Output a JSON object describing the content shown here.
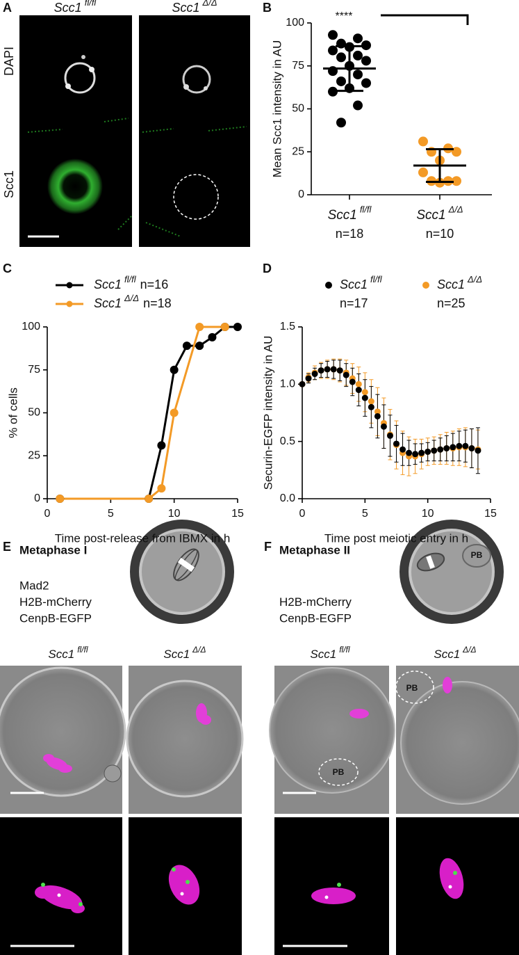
{
  "panel_labels": [
    "A",
    "B",
    "C",
    "D",
    "E",
    "F"
  ],
  "panel_a": {
    "genotypes": [
      {
        "gene": "Scc1",
        "allele": "fl/fl"
      },
      {
        "gene": "Scc1",
        "allele": "Δ/Δ"
      }
    ],
    "channels": [
      {
        "name": "DAPI",
        "color": "#333333"
      },
      {
        "name": "Scc1",
        "color": "#2ca02c"
      }
    ]
  },
  "chart_data": [
    {
      "type": "dotplot",
      "y_label": "Mean Scc1 intensity in AU",
      "ylim": [
        0,
        100
      ],
      "yticks": [
        0,
        25,
        50,
        75,
        100
      ],
      "significance": "****",
      "groups": [
        {
          "gene": "Scc1",
          "allele": "fl/fl",
          "n_label": "n=18",
          "color": "#000000",
          "values": [
            93,
            91,
            88,
            87,
            86,
            84,
            81,
            80,
            78,
            75,
            72,
            70,
            66,
            65,
            62,
            60,
            52,
            42
          ],
          "mean": 73.5,
          "sd": 13
        },
        {
          "gene": "Scc1",
          "allele": "Δ/Δ",
          "n_label": "n=10",
          "color": "#f39a26",
          "values": [
            31,
            27,
            25,
            25,
            20,
            13,
            8,
            8,
            8,
            7
          ],
          "mean": 17,
          "sd": 9.5
        }
      ]
    },
    {
      "type": "line",
      "y_label": "% of cells",
      "x_label": "Time post-release from IBMX in h",
      "xlim": [
        0,
        15
      ],
      "ylim": [
        0,
        100
      ],
      "xticks": [
        0,
        5,
        10,
        15
      ],
      "yticks": [
        0,
        25,
        50,
        75,
        100
      ],
      "series": [
        {
          "gene": "Scc1",
          "allele": "fl/fl",
          "n_label": "n=16",
          "color": "#000000",
          "x": [
            1,
            8,
            9,
            10,
            11,
            12,
            13,
            14,
            15
          ],
          "values": [
            0,
            0,
            31,
            75,
            89,
            89,
            94,
            100,
            100
          ]
        },
        {
          "gene": "Scc1",
          "allele": "Δ/Δ",
          "n_label": "n=18",
          "color": "#f39a26",
          "x": [
            1,
            8,
            9,
            10,
            12,
            14
          ],
          "values": [
            0,
            0,
            6,
            50,
            100,
            100
          ]
        }
      ]
    },
    {
      "type": "errorline",
      "y_label": "Securin-EGFP intensity in AU",
      "x_label": "Time post meiotic entry in h",
      "xlim": [
        0,
        15
      ],
      "ylim": [
        0,
        1.5
      ],
      "xticks": [
        0,
        5,
        10,
        15
      ],
      "yticks": [
        {
          "value": 0,
          "label": "0.0"
        },
        0.5,
        {
          "value": 1,
          "label": "1.0"
        },
        1.5
      ],
      "series": [
        {
          "gene": "Scc1",
          "allele": "fl/fl",
          "n_label": "n=17",
          "color": "#000000",
          "x": [
            0,
            0.5,
            1,
            1.5,
            2,
            2.5,
            3,
            3.5,
            4,
            4.5,
            5,
            5.5,
            6,
            6.5,
            7,
            7.5,
            8,
            8.5,
            9,
            9.5,
            10,
            10.5,
            11,
            11.5,
            12,
            12.5,
            13,
            13.5,
            14
          ],
          "values": [
            1.0,
            1.05,
            1.09,
            1.12,
            1.13,
            1.13,
            1.12,
            1.08,
            1.02,
            0.95,
            0.88,
            0.8,
            0.72,
            0.63,
            0.55,
            0.48,
            0.43,
            0.4,
            0.39,
            0.4,
            0.41,
            0.42,
            0.43,
            0.44,
            0.45,
            0.46,
            0.46,
            0.44,
            0.42
          ],
          "errors": [
            0,
            0.04,
            0.05,
            0.06,
            0.07,
            0.08,
            0.09,
            0.1,
            0.12,
            0.14,
            0.16,
            0.18,
            0.19,
            0.19,
            0.18,
            0.16,
            0.14,
            0.11,
            0.09,
            0.08,
            0.08,
            0.09,
            0.1,
            0.11,
            0.12,
            0.13,
            0.14,
            0.17,
            0.2
          ]
        },
        {
          "gene": "Scc1",
          "allele": "Δ/Δ",
          "n_label": "n=25",
          "color": "#f39a26",
          "x": [
            0,
            0.5,
            1,
            1.5,
            2,
            2.5,
            3,
            3.5,
            4,
            4.5,
            5,
            5.5,
            6,
            6.5,
            7,
            7.5,
            8,
            8.5,
            9,
            9.5,
            10,
            10.5,
            11,
            11.5,
            12,
            12.5,
            13,
            13.5,
            14
          ],
          "values": [
            1.0,
            1.06,
            1.1,
            1.12,
            1.13,
            1.13,
            1.12,
            1.1,
            1.05,
            1.0,
            0.93,
            0.85,
            0.76,
            0.66,
            0.56,
            0.47,
            0.4,
            0.37,
            0.37,
            0.39,
            0.41,
            0.42,
            0.43,
            0.44,
            0.44,
            0.45,
            0.45,
            0.44,
            0.43
          ],
          "errors": [
            0,
            0.04,
            0.06,
            0.07,
            0.08,
            0.09,
            0.1,
            0.11,
            0.13,
            0.15,
            0.17,
            0.19,
            0.21,
            0.22,
            0.22,
            0.21,
            0.19,
            0.17,
            0.15,
            0.13,
            0.12,
            0.12,
            0.13,
            0.14,
            0.15,
            0.16,
            0.17,
            0.17,
            0.17
          ]
        }
      ]
    }
  ],
  "panel_e": {
    "title": "Metaphase I",
    "stains": [
      {
        "name": "Mad2",
        "color": "#222222"
      },
      {
        "name": "H2B-mCherry",
        "color": "#d21fb4"
      },
      {
        "name": "CenpB-EGFP",
        "color": "#3aa635"
      }
    ],
    "genotypes": [
      {
        "gene": "Scc1",
        "allele": "fl/fl"
      },
      {
        "gene": "Scc1",
        "allele": "Δ/Δ"
      }
    ]
  },
  "panel_f": {
    "title": "Metaphase II",
    "stains": [
      {
        "name": "H2B-mCherry",
        "color": "#d21fb4"
      },
      {
        "name": "CenpB-EGFP",
        "color": "#3aa635"
      }
    ],
    "genotypes": [
      {
        "gene": "Scc1",
        "allele": "fl/fl"
      },
      {
        "gene": "Scc1",
        "allele": "Δ/Δ"
      }
    ],
    "diagram_label": "PB",
    "image_labels": [
      "PB",
      "PB"
    ]
  }
}
